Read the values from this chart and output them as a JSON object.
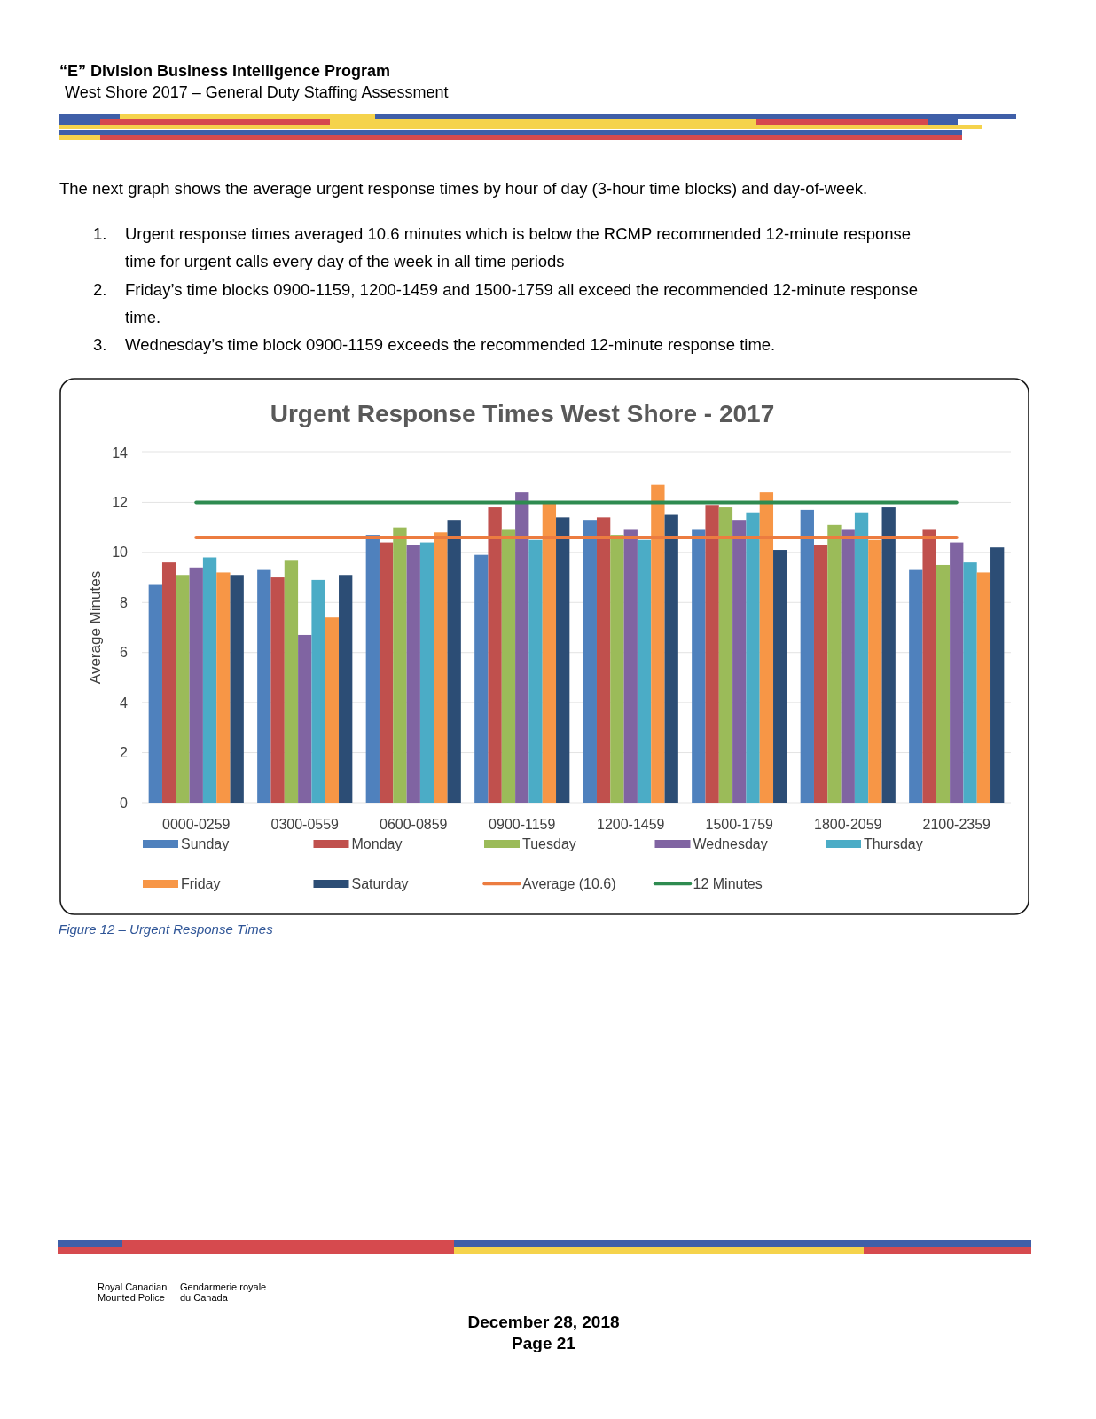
{
  "chart_data": {
    "type": "bar",
    "title": "Urgent Response Times West Shore - 2017",
    "ylabel": "Average Minutes",
    "categories": [
      "0000-0259",
      "0300-0559",
      "0600-0859",
      "0900-1159",
      "1200-1459",
      "1500-1759",
      "1800-2059",
      "2100-2359"
    ],
    "series": [
      {
        "name": "Sunday",
        "color": "#4f81bd",
        "values": [
          8.7,
          9.3,
          10.7,
          9.9,
          11.3,
          10.9,
          11.7,
          9.3
        ]
      },
      {
        "name": "Monday",
        "color": "#c0504d",
        "values": [
          9.6,
          9.0,
          10.4,
          11.8,
          11.4,
          11.9,
          10.3,
          10.9
        ]
      },
      {
        "name": "Tuesday",
        "color": "#9bbb59",
        "values": [
          9.1,
          9.7,
          11.0,
          10.9,
          10.7,
          11.8,
          11.1,
          9.5
        ]
      },
      {
        "name": "Wednesday",
        "color": "#8064a2",
        "values": [
          9.4,
          6.7,
          10.3,
          12.4,
          10.9,
          11.3,
          10.9,
          10.4
        ]
      },
      {
        "name": "Thursday",
        "color": "#4bacc6",
        "values": [
          9.8,
          8.9,
          10.4,
          10.5,
          10.5,
          11.6,
          11.6,
          9.6
        ]
      },
      {
        "name": "Friday",
        "color": "#f79646",
        "values": [
          9.2,
          7.4,
          10.8,
          12.0,
          12.7,
          12.4,
          10.5,
          9.2
        ]
      },
      {
        "name": "Saturday",
        "color": "#2c4d75",
        "values": [
          9.1,
          9.1,
          11.3,
          11.4,
          11.5,
          10.1,
          11.8,
          10.2
        ]
      },
      {
        "name": "Average (10.6)",
        "type": "line",
        "color": "#ec7c40",
        "values": [
          10.6,
          10.6,
          10.6,
          10.6,
          10.6,
          10.6,
          10.6,
          10.6
        ]
      },
      {
        "name": "12 Minutes",
        "type": "line",
        "color": "#2e8b50",
        "values": [
          12,
          12,
          12,
          12,
          12,
          12,
          12,
          12
        ]
      }
    ],
    "ylim": [
      0,
      14
    ],
    "yticks": [
      0,
      2,
      4,
      6,
      8,
      10,
      12,
      14
    ],
    "grid": "y",
    "legend": "bottom",
    "annotations": [
      "“E” Division Business Intelligence Program",
      "West Shore 2017 – General Duty Staffing Assessment",
      "The next graph shows the average urgent response times by hour of day (3-hour time blocks) and day-of-week.",
      "1. Urgent response times averaged 10.6 minutes which is below the RCMP recommended 12-minute response time for urgent calls every day of the week in all time periods",
      "2. Friday’s time blocks 0900-1159, 1200-1459 and 1500-1759 all exceed the recommended 12-minute response time.",
      "3. Wednesday’s time block 0900-1159 exceeds the recommended 12-minute response time.",
      "Figure 12 – Urgent Response Times",
      "Royal Canadian Mounted Police",
      "Gendarmerie royale du Canada",
      "December 28, 2018",
      "Page 21"
    ]
  }
}
